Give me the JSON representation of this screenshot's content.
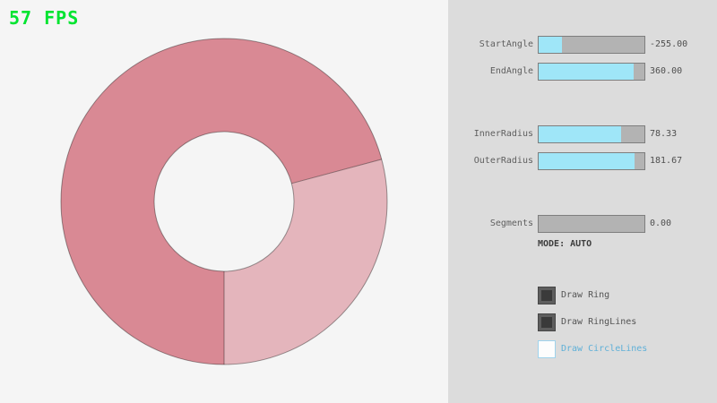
{
  "app": {
    "fps_label": "57 FPS",
    "fps_color": "#00e430"
  },
  "ring": {
    "start_angle": -255.0,
    "end_angle": 360.0,
    "inner_radius": 78.33,
    "outer_radius": 181.67,
    "segments": 0.0,
    "mode": "AUTO",
    "color_overlap": "#d98994",
    "color_single": "#e4b5bc"
  },
  "controls": {
    "sliders": [
      {
        "label": "StartAngle",
        "value": "-255.00",
        "fill_pct": 21.67
      },
      {
        "label": "EndAngle",
        "value": "360.00",
        "fill_pct": 90.0
      },
      {
        "label": "InnerRadius",
        "value": "78.33",
        "fill_pct": 78.33
      },
      {
        "label": "OuterRadius",
        "value": "181.67",
        "fill_pct": 90.83
      },
      {
        "label": "Segments",
        "value": "0.00",
        "fill_pct": 0
      }
    ],
    "mode_label": "MODE: AUTO",
    "checkboxes": [
      {
        "label": "Draw Ring",
        "checked": true,
        "label_color": "#545454"
      },
      {
        "label": "Draw RingLines",
        "checked": true,
        "label_color": "#545454"
      },
      {
        "label": "Draw CircleLines",
        "checked": false,
        "label_color": "#5fb0d8"
      }
    ]
  }
}
